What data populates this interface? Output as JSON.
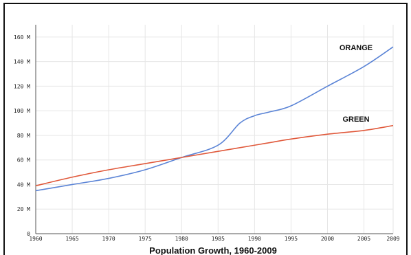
{
  "chart_data": {
    "type": "line",
    "title": "Population Growth, 1960-2009",
    "xlabel": "",
    "ylabel": "",
    "x": [
      1960,
      1965,
      1970,
      1975,
      1980,
      1985,
      1988,
      1990,
      1992,
      1995,
      2000,
      2005,
      2009
    ],
    "xlim": [
      1960,
      2009
    ],
    "ylim": [
      0,
      170
    ],
    "x_ticks": [
      1960,
      1965,
      1970,
      1975,
      1980,
      1985,
      1990,
      1995,
      2000,
      2005,
      2009
    ],
    "y_ticks": [
      0,
      20,
      40,
      60,
      80,
      100,
      120,
      140,
      160
    ],
    "y_tick_labels": [
      "0",
      "20 M",
      "40 M",
      "60 M",
      "80 M",
      "100 M",
      "120 M",
      "140 M",
      "160 M"
    ],
    "grid": true,
    "legend": "none",
    "series": [
      {
        "name": "ORANGE",
        "color": "#5b84d6",
        "values": [
          35,
          40,
          45,
          52,
          62,
          72,
          90,
          96,
          99,
          104,
          120,
          136,
          152
        ]
      },
      {
        "name": "GREEN",
        "color": "#e0583a",
        "values": [
          39,
          46,
          52,
          57,
          62,
          67,
          70,
          72,
          74,
          77,
          81,
          84,
          88
        ]
      }
    ]
  }
}
